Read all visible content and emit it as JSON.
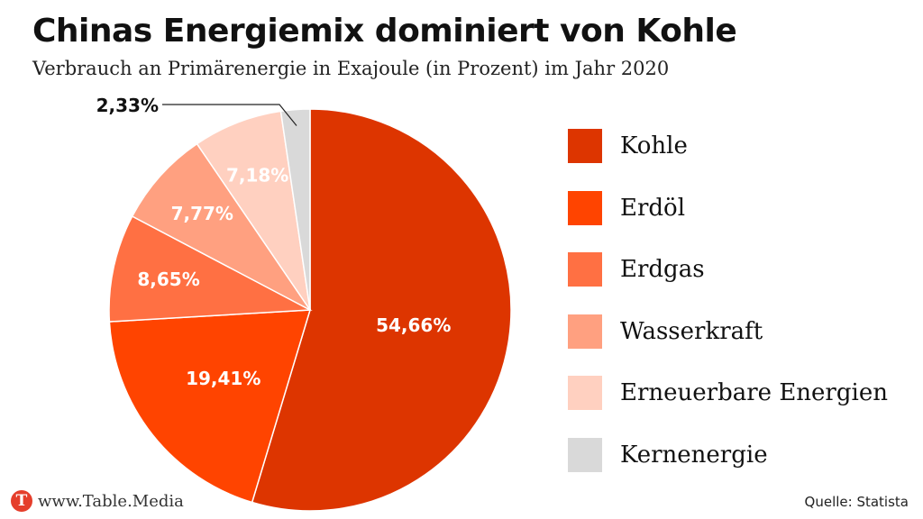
{
  "title": "Chinas Energiemix dominiert von Kohle",
  "subtitle": "Verbrauch an Primärenergie in Exajoule (in Prozent) im Jahr 2020",
  "footer": {
    "logo_letter": "T",
    "site": "www.Table.Media",
    "source": "Quelle: Statista"
  },
  "chart_data": {
    "type": "pie",
    "title": "Chinas Energiemix dominiert von Kohle",
    "start_angle": "top, clockwise",
    "legend_position": "right",
    "slices": [
      {
        "name": "Kohle",
        "value": 54.66,
        "label": "54,66%",
        "color": "#dd3500"
      },
      {
        "name": "Erdöl",
        "value": 19.41,
        "label": "19,41%",
        "color": "#ff4400"
      },
      {
        "name": "Erdgas",
        "value": 8.65,
        "label": "8,65%",
        "color": "#ff7043"
      },
      {
        "name": "Wasserkraft",
        "value": 7.77,
        "label": "7,77%",
        "color": "#ffa080"
      },
      {
        "name": "Erneuerbare Energien",
        "value": 7.18,
        "label": "7,18%",
        "color": "#ffd0c0"
      },
      {
        "name": "Kernenergie",
        "value": 2.33,
        "label": "2,33%",
        "color": "#d9d9d9"
      }
    ]
  }
}
